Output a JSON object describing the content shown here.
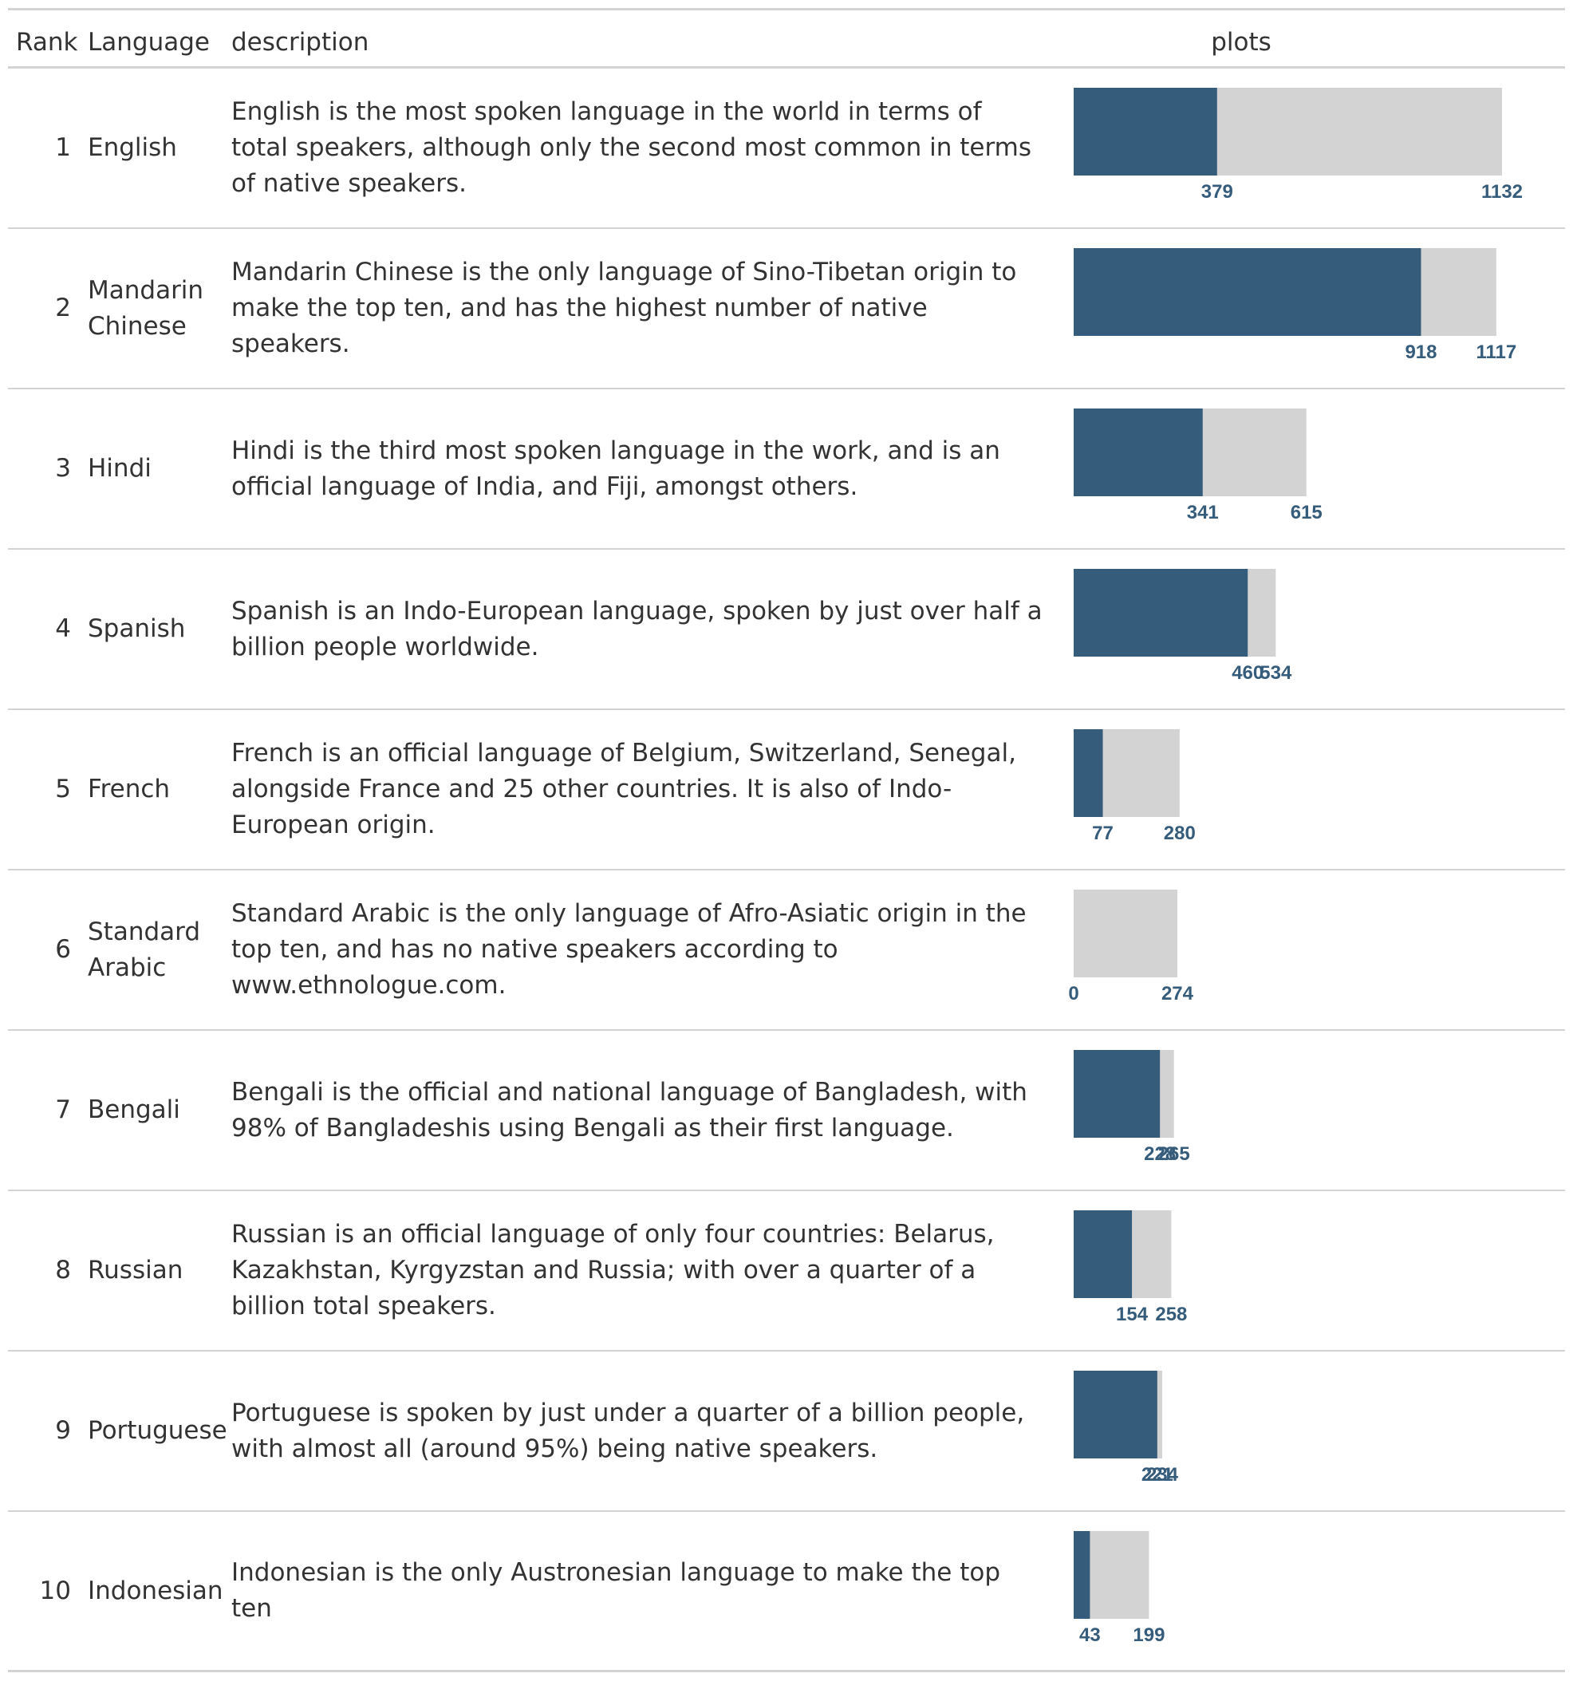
{
  "table": {
    "headers": {
      "rank": "Rank",
      "language": "Language",
      "description": "description",
      "plots": "plots"
    },
    "rows": [
      {
        "rank": "1",
        "language": "English",
        "description": "English is the most spoken language in the world in terms of total speakers, although only the second most common in terms of native speakers."
      },
      {
        "rank": "2",
        "language": "Mandarin Chinese",
        "description": "Mandarin Chinese is the only language of Sino-Tibetan origin to make the top ten, and has the highest number of native speakers."
      },
      {
        "rank": "3",
        "language": "Hindi",
        "description": "Hindi is the third most spoken language in the work, and is an official language of India, and Fiji, amongst others."
      },
      {
        "rank": "4",
        "language": "Spanish",
        "description": "Spanish is an Indo-European language, spoken by just over half a billion people worldwide."
      },
      {
        "rank": "5",
        "language": "French",
        "description": "French is an official language of Belgium, Switzerland, Senegal, alongside France and 25 other countries. It is also of Indo-European origin."
      },
      {
        "rank": "6",
        "language": "Standard Arabic",
        "description": "Standard Arabic is the only language of Afro-Asiatic origin in the top ten, and has no native speakers according to www.ethnologue.com."
      },
      {
        "rank": "7",
        "language": "Bengali",
        "description": "Bengali is the official and national language of Bangladesh, with 98% of Bangladeshis using Bengali as their first language."
      },
      {
        "rank": "8",
        "language": "Russian",
        "description": "Russian is an official language of only four countries: Belarus, Kazakhstan, Kyrgyzstan and Russia; with over a quarter of a billion total speakers."
      },
      {
        "rank": "9",
        "language": "Portuguese",
        "description": "Portuguese is spoken by just under a quarter of a billion people, with almost all (around 95%) being native speakers."
      },
      {
        "rank": "10",
        "language": "Indonesian",
        "description": "Indonesian is the only Austronesian language to make the top ten"
      }
    ]
  },
  "chart_data": {
    "type": "bar",
    "categories": [
      "English",
      "Mandarin Chinese",
      "Hindi",
      "Spanish",
      "French",
      "Standard Arabic",
      "Bengali",
      "Russian",
      "Portuguese",
      "Indonesian"
    ],
    "series": [
      {
        "values": [
          379,
          918,
          341,
          460,
          77,
          0,
          228,
          154,
          221,
          43
        ]
      },
      {
        "values": [
          1132,
          1117,
          615,
          534,
          280,
          274,
          265,
          258,
          234,
          199
        ]
      }
    ],
    "xlim": [
      0,
      1132
    ],
    "colors": {
      "native": "#365c7c",
      "total": "#d3d3d3",
      "label": "#365c7c"
    }
  }
}
